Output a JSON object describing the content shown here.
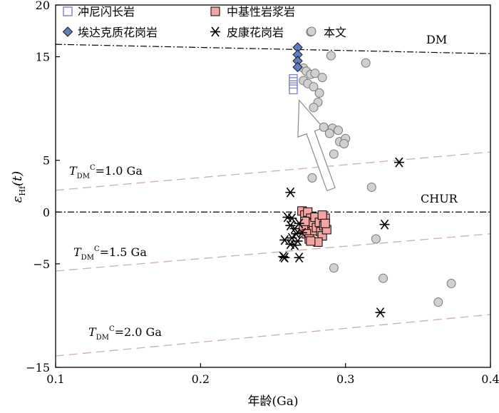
{
  "chart_data": {
    "type": "scatter",
    "xlabel": "年龄(Ga)",
    "ylabel_main": "ε",
    "ylabel_sub": "Hf",
    "ylabel_tail": "(t)",
    "xlim": [
      0.1,
      0.4
    ],
    "ylim": [
      -15,
      20
    ],
    "x_ticks": [
      0.1,
      0.2,
      0.3,
      0.4
    ],
    "x_tick_labels": [
      "0.1",
      "0.2",
      "0.3",
      "0.4"
    ],
    "y_ticks": [
      -15,
      -5,
      0,
      5,
      15,
      20
    ],
    "y_tick_labels": [
      "−15",
      "−5",
      "0",
      "5",
      "15",
      "20"
    ],
    "grid": false,
    "legend_placement": "top-left",
    "reference_lines": [
      {
        "name": "DM",
        "style": "dash-dot",
        "color": "#000000",
        "x": [
          0.1,
          0.4
        ],
        "y": [
          16.2,
          15.3
        ]
      },
      {
        "name": "CHUR",
        "style": "dash-dot",
        "color": "#000000",
        "x": [
          0.1,
          0.4
        ],
        "y": [
          0,
          0
        ]
      },
      {
        "name_main": "T",
        "name_sub": "DM",
        "name_sup": "C",
        "name_tail": "=1.0 Ga",
        "style": "dashed",
        "color": "#c8aeb0",
        "x": [
          0.1,
          0.4
        ],
        "y": [
          2.1,
          5.8
        ]
      },
      {
        "name_main": "T",
        "name_sub": "DM",
        "name_sup": "C",
        "name_tail": "=1.5 Ga",
        "style": "dashed",
        "color": "#c8aeb0",
        "x": [
          0.1,
          0.4
        ],
        "y": [
          -5.7,
          -2.1
        ]
      },
      {
        "name_main": "T",
        "name_sub": "DM",
        "name_sup": "C",
        "name_tail": "=2.0 Ga",
        "style": "dashed",
        "color": "#c8aeb0",
        "x": [
          0.1,
          0.4
        ],
        "y": [
          -13.9,
          -9.9
        ]
      }
    ],
    "series": [
      {
        "name": "冲尼闪长岩",
        "marker": "open-square",
        "color": "#7b7fd1",
        "points": [
          [
            0.264,
            13.0
          ],
          [
            0.264,
            12.7
          ],
          [
            0.264,
            12.4
          ],
          [
            0.264,
            12.2
          ],
          [
            0.264,
            12.0
          ],
          [
            0.264,
            11.7
          ]
        ]
      },
      {
        "name": "中基性岩浆岩",
        "marker": "filled-square",
        "color": "#f2a5a2",
        "points": [
          [
            0.27,
            0.1
          ],
          [
            0.272,
            -0.3
          ],
          [
            0.274,
            0.0
          ],
          [
            0.276,
            -0.6
          ],
          [
            0.273,
            -1.0
          ],
          [
            0.275,
            -1.3
          ],
          [
            0.271,
            -1.6
          ],
          [
            0.277,
            -1.1
          ],
          [
            0.279,
            -0.5
          ],
          [
            0.278,
            -1.8
          ],
          [
            0.273,
            -2.1
          ],
          [
            0.275,
            -2.6
          ],
          [
            0.28,
            -1.5
          ],
          [
            0.282,
            -1.0
          ],
          [
            0.283,
            -1.9
          ],
          [
            0.284,
            -2.3
          ],
          [
            0.285,
            -1.3
          ],
          [
            0.286,
            -0.6
          ],
          [
            0.287,
            -1.7
          ],
          [
            0.281,
            -2.9
          ],
          [
            0.276,
            -2.8
          ],
          [
            0.284,
            -0.3
          ],
          [
            0.272,
            -0.9
          ],
          [
            0.286,
            -1.1
          ]
        ]
      },
      {
        "name": "埃达克质花岗岩",
        "marker": "diamond",
        "color": "#5b7fc0",
        "points": [
          [
            0.267,
            15.9
          ],
          [
            0.267,
            15.2
          ],
          [
            0.267,
            14.6
          ],
          [
            0.267,
            14.0
          ]
        ]
      },
      {
        "name": "皮康花岗岩",
        "marker": "asterisk",
        "color": "#000000",
        "points": [
          [
            0.262,
            1.9
          ],
          [
            0.26,
            -0.5
          ],
          [
            0.263,
            -0.6
          ],
          [
            0.262,
            -1.3
          ],
          [
            0.265,
            -1.6
          ],
          [
            0.268,
            -1.1
          ],
          [
            0.266,
            -2.1
          ],
          [
            0.263,
            -2.5
          ],
          [
            0.267,
            -2.8
          ],
          [
            0.262,
            -3.1
          ],
          [
            0.258,
            -2.7
          ],
          [
            0.258,
            -4.4
          ],
          [
            0.265,
            -3.2
          ],
          [
            0.268,
            -4.4
          ],
          [
            0.257,
            -4.3
          ],
          [
            0.27,
            -2.0
          ],
          [
            0.327,
            -1.2
          ],
          [
            0.337,
            4.8
          ],
          [
            0.324,
            -9.7
          ]
        ]
      },
      {
        "name": "本文",
        "marker": "circle",
        "color": "#d0d0d0",
        "points": [
          [
            0.276,
            17.4
          ],
          [
            0.29,
            15.1
          ],
          [
            0.314,
            14.4
          ],
          [
            0.271,
            13.9
          ],
          [
            0.273,
            13.6
          ],
          [
            0.276,
            13.3
          ],
          [
            0.279,
            13.4
          ],
          [
            0.284,
            13.0
          ],
          [
            0.271,
            12.7
          ],
          [
            0.274,
            12.4
          ],
          [
            0.278,
            12.1
          ],
          [
            0.282,
            11.5
          ],
          [
            0.281,
            10.6
          ],
          [
            0.278,
            10.1
          ],
          [
            0.285,
            8.2
          ],
          [
            0.291,
            8.1
          ],
          [
            0.295,
            7.9
          ],
          [
            0.289,
            7.6
          ],
          [
            0.296,
            6.8
          ],
          [
            0.3,
            7.1
          ],
          [
            0.299,
            6.6
          ],
          [
            0.292,
            5.6
          ],
          [
            0.277,
            3.3
          ],
          [
            0.318,
            2.4
          ],
          [
            0.321,
            -2.6
          ],
          [
            0.292,
            -5.4
          ],
          [
            0.326,
            -6.4
          ],
          [
            0.373,
            -6.9
          ],
          [
            0.364,
            -8.7
          ]
        ]
      }
    ],
    "annotation_arrow": {
      "from": [
        0.29,
        2.2
      ],
      "to": [
        0.268,
        10.8
      ],
      "fill": "#ffffff",
      "stroke": "#888888"
    }
  }
}
